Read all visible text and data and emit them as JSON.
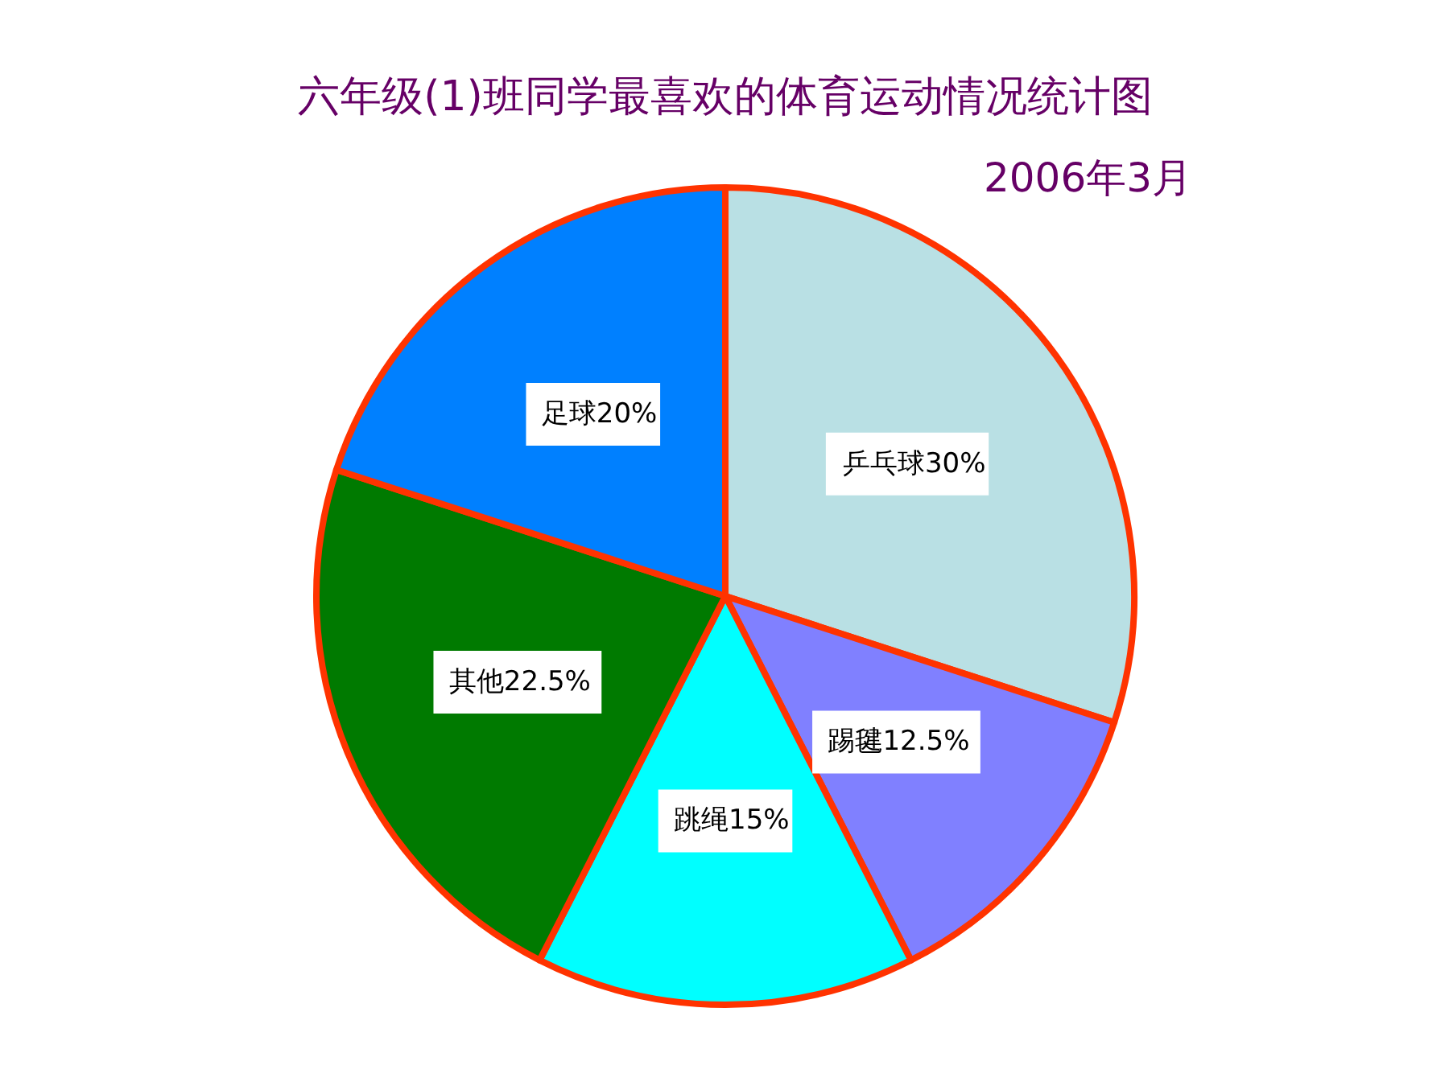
{
  "chart_data": {
    "type": "pie",
    "title": "六年级(1)班同学最喜欢的体育运动情况统计图",
    "subtitle": "2006年3月",
    "categories": [
      "乒乓球",
      "踢毽",
      "跳绳",
      "其他",
      "足球"
    ],
    "values": [
      30,
      12.5,
      15,
      22.5,
      20
    ],
    "value_labels": [
      "30%",
      "12.5%",
      "15%",
      "22.5%",
      "20%"
    ],
    "colors": [
      "#b9e0e4",
      "#8080ff",
      "#00ffff",
      "#007a00",
      "#0080ff"
    ]
  }
}
